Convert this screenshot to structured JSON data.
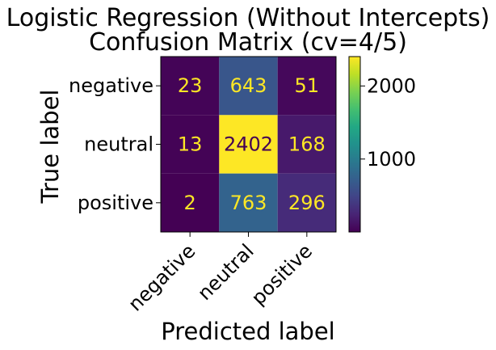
{
  "chart_data": {
    "type": "heatmap",
    "title": "Logistic Regression (Without Intercepts)",
    "subtitle": "Confusion Matrix (cv=4/5)",
    "xlabel": "Predicted label",
    "ylabel": "True label",
    "x_categories": [
      "negative",
      "neutral",
      "positive"
    ],
    "y_categories": [
      "negative",
      "neutral",
      "positive"
    ],
    "values": [
      [
        23,
        643,
        51
      ],
      [
        13,
        2402,
        168
      ],
      [
        2,
        763,
        296
      ]
    ],
    "colormap": "viridis",
    "colorbar": {
      "min": 2,
      "max": 2402,
      "ticks": [
        1000,
        2000
      ],
      "tick_labels": [
        "1000",
        "2000"
      ]
    },
    "grid": false
  }
}
